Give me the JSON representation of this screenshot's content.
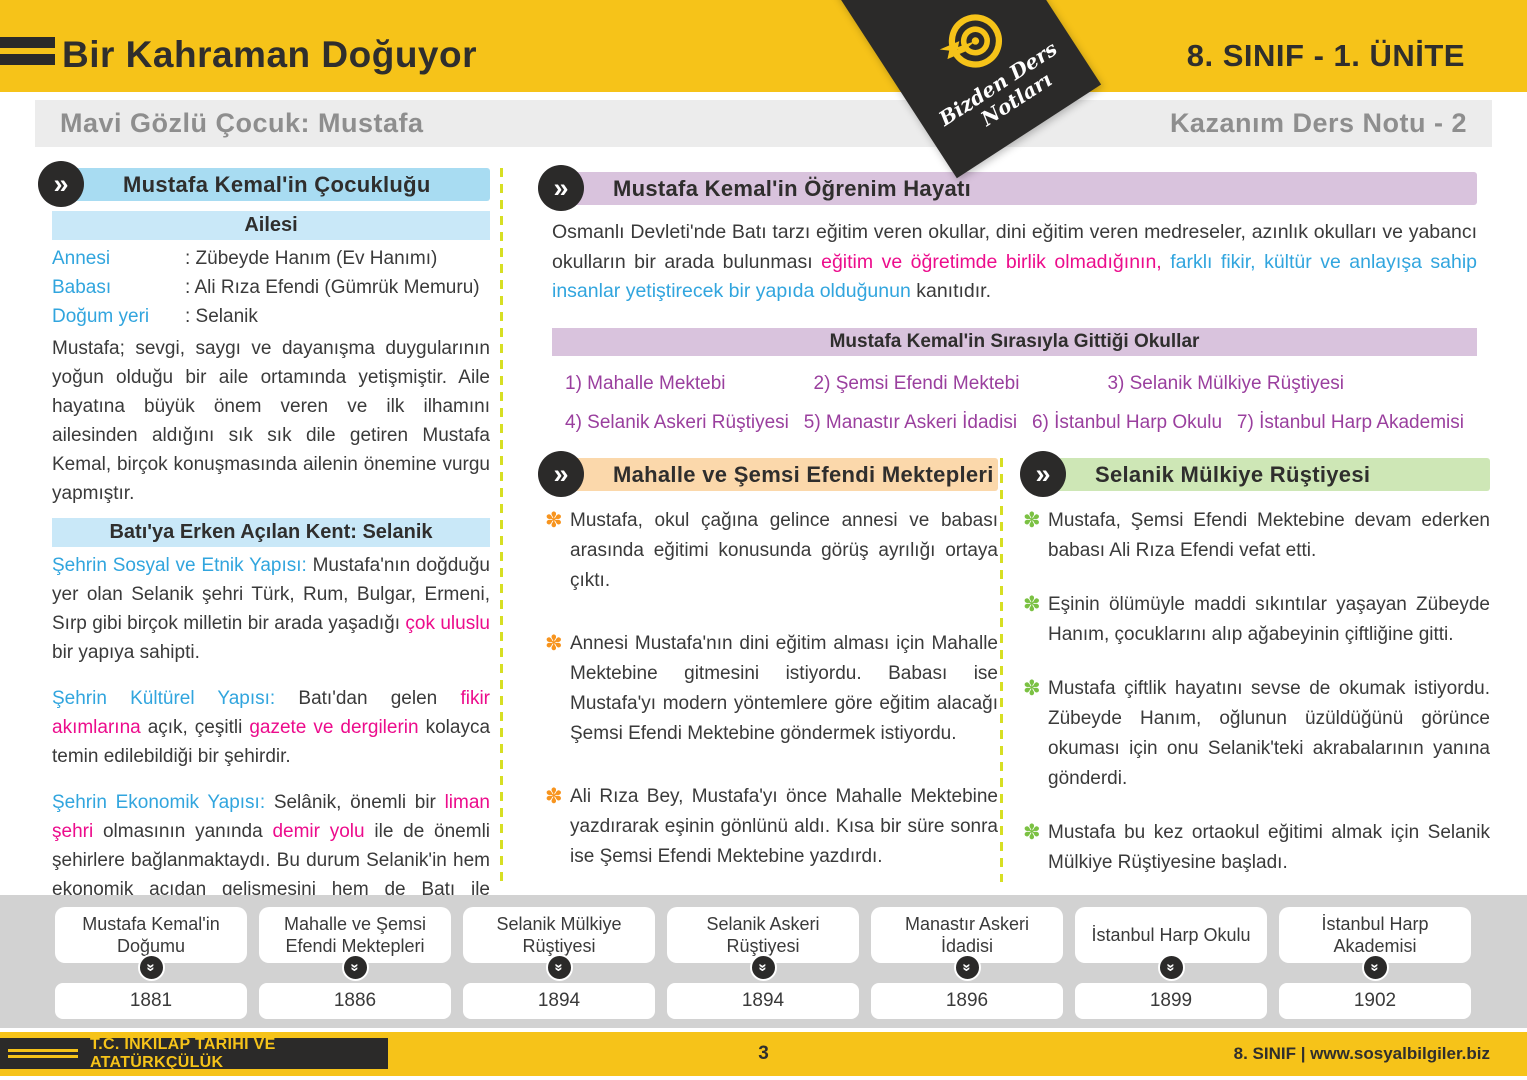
{
  "colors": {
    "accent_yellow": "#F6C319",
    "ink": "#2B2A29",
    "body_text": "#3A3A3A",
    "gray_bar": "#ECECEC",
    "gray_text": "#8E8E8E",
    "blue": "#31A5DE",
    "pink": "#EC0C8C",
    "purple": "#9A3F9E",
    "header_blue": "#A8DCF2",
    "header_blue_light": "#C9E8F8",
    "header_purple": "#D9C3DD",
    "header_peach": "#FBD8AB",
    "header_green": "#CEE7B6",
    "bullet_orange": "#F7941E",
    "bullet_green": "#7BC143",
    "band_gray": "#D2D2D2",
    "divider": "#D7DF23"
  },
  "header": {
    "title": "Bir Kahraman Doğuyor",
    "unit": "8. SINIF - 1. ÜNİTE",
    "subtitle_left": "Mavi Gözlü Çocuk: Mustafa",
    "subtitle_right": "Kazanım Ders Notu - 2",
    "ribbon_line1": "Bizden Ders",
    "ribbon_line2": "Notları"
  },
  "childhood": {
    "title": "Mustafa Kemal'in Çocukluğu",
    "family_title": "Ailesi",
    "family_rows": [
      {
        "label": "Annesi",
        "value": ": Zübeyde Hanım (Ev Hanımı)"
      },
      {
        "label": "Babası",
        "value": ": Ali Rıza Efendi (Gümrük Memuru)"
      },
      {
        "label": "Doğum yeri",
        "value": ": Selanik"
      }
    ],
    "family_paragraph": "Mustafa; sevgi, saygı ve dayanışma duygularının yoğun olduğu bir aile ortamında yetişmiştir. Aile hayatına büyük önem veren ve ilk ilhamını ailesinden aldığını sık sık dile getiren Mustafa Kemal, birçok konuşmasında ailenin önemine vurgu yapmıştır.",
    "selanik_title": "Batı'ya Erken Açılan Kent: Selanik",
    "p_social": [
      {
        "t": "Şehrin Sosyal ve Etnik Yapısı: ",
        "c": "blue"
      },
      {
        "t": "Mustafa'nın doğduğu yer olan Selanik şehri Türk, Rum, Bulgar, Ermeni, Sırp gibi birçok milletin bir arada yaşadığı "
      },
      {
        "t": "çok uluslu",
        "c": "pink"
      },
      {
        "t": " bir yapıya sahipti."
      }
    ],
    "p_cultural": [
      {
        "t": "Şehrin Kültürel Yapısı: ",
        "c": "blue"
      },
      {
        "t": "Batı'dan gelen "
      },
      {
        "t": "fikir akımlarına",
        "c": "pink"
      },
      {
        "t": " açık, çeşitli "
      },
      {
        "t": "gazete ve dergilerin",
        "c": "pink"
      },
      {
        "t": " kolayca temin edilebildiği bir şehirdir."
      }
    ],
    "p_economic": [
      {
        "t": "Şehrin Ekonomik Yapısı: ",
        "c": "blue"
      },
      {
        "t": "Selânik, önemli bir "
      },
      {
        "t": "liman şehri",
        "c": "pink"
      },
      {
        "t": " olmasının yanında "
      },
      {
        "t": "demir yolu",
        "c": "pink"
      },
      {
        "t": " ile de önemli şehirlere bağlanmaktaydı. Bu durum Selanik'in hem ekonomik açıdan gelişmesini hem de Batı ile etkileşimini kolaylaştırmıştır."
      }
    ]
  },
  "education": {
    "title": "Mustafa Kemal'in Öğrenim Hayatı",
    "intro": [
      {
        "t": "Osmanlı Devleti'nde Batı tarzı eğitim veren okullar, dini eğitim veren medreseler, azınlık okulları ve yabancı okulların bir arada bulunması "
      },
      {
        "t": "eğitim ve öğretimde birlik olmadığının,",
        "c": "pink"
      },
      {
        "t": " "
      },
      {
        "t": "farklı fikir, kültür ve anlayışa sahip insanlar yetiştirecek bir yapıda olduğunun",
        "c": "blue"
      },
      {
        "t": " kanıtıdır."
      }
    ],
    "schools_title": "Mustafa Kemal'in Sırasıyla Gittiği Okullar",
    "schools_row1": [
      "1) Mahalle Mektebi",
      "2) Şemsi Efendi Mektebi",
      "3) Selanik Mülkiye Rüştiyesi"
    ],
    "schools_row2": [
      "4) Selanik Askeri Rüştiyesi",
      "5) Manastır Askeri İdadisi",
      "6) İstanbul Harp Okulu",
      "7) İstanbul Harp Akademisi"
    ]
  },
  "mahalle_section": {
    "title": "Mahalle ve Şemsi Efendi Mektepleri",
    "bullets": [
      "Mustafa, okul çağına gelince annesi ve babası arasında eğitimi konusunda görüş ayrılığı ortaya çıktı.",
      "Annesi Mustafa'nın dini eğitim alması için Mahalle Mektebine gitmesini istiyordu. Babası ise Mustafa'yı modern yöntemlere göre eğitim alacağı Şemsi Efendi Mektebine göndermek istiyordu.",
      "Ali Rıza Bey, Mustafa'yı önce Mahalle Mektebine yazdırarak eşinin gönlünü aldı. Kısa bir süre sonra ise Şemsi Efendi Mektebine yazdırdı."
    ]
  },
  "mulkiye_section": {
    "title": "Selanik Mülkiye Rüştiyesi",
    "bullets": [
      "Mustafa, Şemsi Efendi Mektebine devam ederken babası Ali Rıza Efendi vefat etti.",
      "Eşinin ölümüyle maddi sıkıntılar yaşayan Zübeyde Hanım, çocuklarını alıp ağabeyinin çiftliğine gitti.",
      "Mustafa çiftlik hayatını sevse de okumak istiyordu. Zübeyde Hanım, oğlunun üzüldüğünü görünce okuması için onu Selanik'teki akrabalarının yanına gönderdi.",
      "Mustafa bu kez ortaokul eğitimi almak için Selanik Mülkiye Rüştiyesine başladı."
    ]
  },
  "timeline": {
    "items": [
      {
        "label": "Mustafa Kemal'in Doğumu",
        "year": "1881"
      },
      {
        "label": "Mahalle ve Şemsi Efendi Mektepleri",
        "year": "1886"
      },
      {
        "label": "Selanik Mülkiye Rüştiyesi",
        "year": "1894"
      },
      {
        "label": "Selanik Askeri Rüştiyesi",
        "year": "1894"
      },
      {
        "label": "Manastır Askeri İdadisi",
        "year": "1896"
      },
      {
        "label": "İstanbul Harp Okulu",
        "year": "1899"
      },
      {
        "label": "İstanbul Harp Akademisi",
        "year": "1902"
      }
    ]
  },
  "footer": {
    "course": "T.C. İNKILAP TARİHİ VE ATATÜRKÇÜLÜK",
    "page": "3",
    "site": "8. SINIF  |  www.sosyalbilgiler.biz"
  }
}
